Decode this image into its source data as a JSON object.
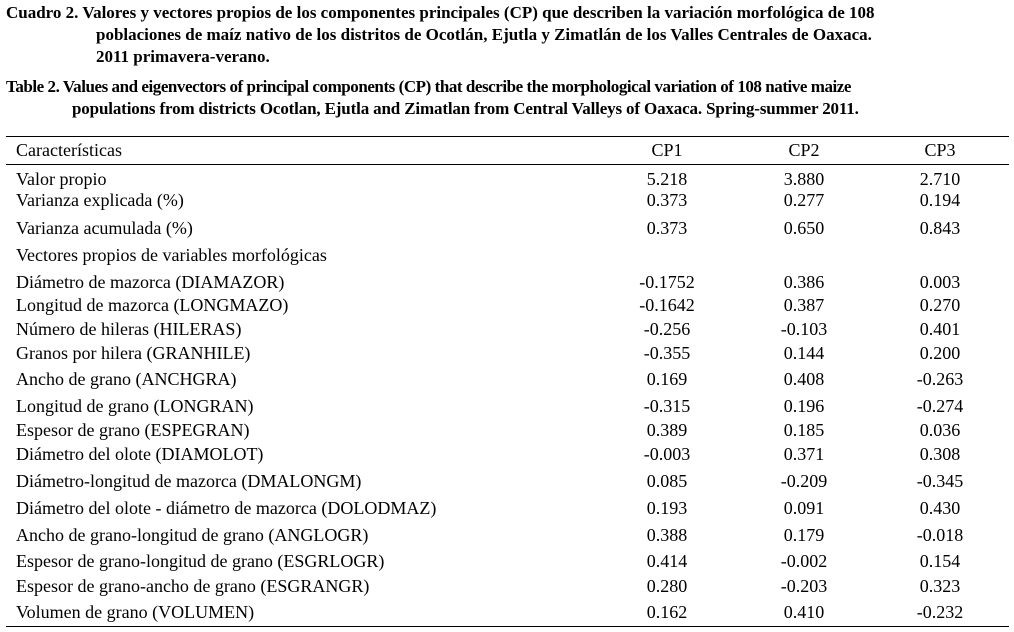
{
  "caption_es": {
    "line1": "Cuadro 2. Valores y vectores propios de los componentes principales (CP) que describen la variación morfológica de 108",
    "line2": "poblaciones de maíz nativo de los distritos de Ocotlán, Ejutla y Zimatlán de los Valles Centrales de Oaxaca.",
    "line3": "2011 primavera-verano."
  },
  "caption_en": {
    "line1": "Table 2. Values and eigenvectors of principal components (CP) that describe the morphological variation of 108 native maize",
    "line2": "populations from districts Ocotlan, Ejutla and Zimatlan from Central Valleys of Oaxaca. Spring-summer 2011."
  },
  "table": {
    "headers": [
      "Características",
      "CP1",
      "CP2",
      "CP3"
    ],
    "rows": [
      {
        "label": "Valor propio",
        "values": [
          "5.218",
          "3.880",
          "2.710"
        ]
      },
      {
        "label": "Varianza explicada (%)",
        "values": [
          "0.373",
          "0.277",
          "0.194"
        ]
      },
      {
        "label": "Varianza acumulada (%)",
        "values": [
          "0.373",
          "0.650",
          "0.843"
        ]
      },
      {
        "label": "Vectores propios de variables morfológicas",
        "values": [
          "",
          "",
          ""
        ]
      },
      {
        "label": "Diámetro de mazorca (DIAMAZOR)",
        "values": [
          "-0.1752",
          "0.386",
          "0.003"
        ]
      },
      {
        "label": "Longitud de mazorca (LONGMAZO)",
        "values": [
          "-0.1642",
          "0.387",
          "0.270"
        ]
      },
      {
        "label": "Número de hileras (HILERAS)",
        "values": [
          "-0.256",
          "-0.103",
          "0.401"
        ]
      },
      {
        "label": "Granos por hilera (GRANHILE)",
        "values": [
          "-0.355",
          "0.144",
          "0.200"
        ]
      },
      {
        "label": "Ancho de grano (ANCHGRA)",
        "values": [
          "0.169",
          "0.408",
          "-0.263"
        ]
      },
      {
        "label": "Longitud de grano (LONGRAN)",
        "values": [
          "-0.315",
          "0.196",
          "-0.274"
        ]
      },
      {
        "label": "Espesor de grano (ESPEGRAN)",
        "values": [
          "0.389",
          "0.185",
          "0.036"
        ]
      },
      {
        "label": "Diámetro del olote (DIAMOLOT)",
        "values": [
          "-0.003",
          "0.371",
          "0.308"
        ]
      },
      {
        "label": "Diámetro-longitud de mazorca (DMALONGM)",
        "values": [
          "0.085",
          "-0.209",
          "-0.345"
        ]
      },
      {
        "label": "Diámetro del olote - diámetro de mazorca (DOLODMAZ)",
        "values": [
          "0.193",
          "0.091",
          "0.430"
        ]
      },
      {
        "label": "Ancho de grano-longitud de grano (ANGLOGR)",
        "values": [
          "0.388",
          "0.179",
          "-0.018"
        ]
      },
      {
        "label": "Espesor de grano-longitud de grano (ESGRLOGR)",
        "values": [
          "0.414",
          "-0.002",
          "0.154"
        ]
      },
      {
        "label": "Espesor de grano-ancho de grano (ESGRANGR)",
        "values": [
          "0.280",
          "-0.203",
          "0.323"
        ]
      },
      {
        "label": "Volumen de grano (VOLUMEN)",
        "values": [
          "0.162",
          "0.410",
          "-0.232"
        ]
      }
    ]
  }
}
